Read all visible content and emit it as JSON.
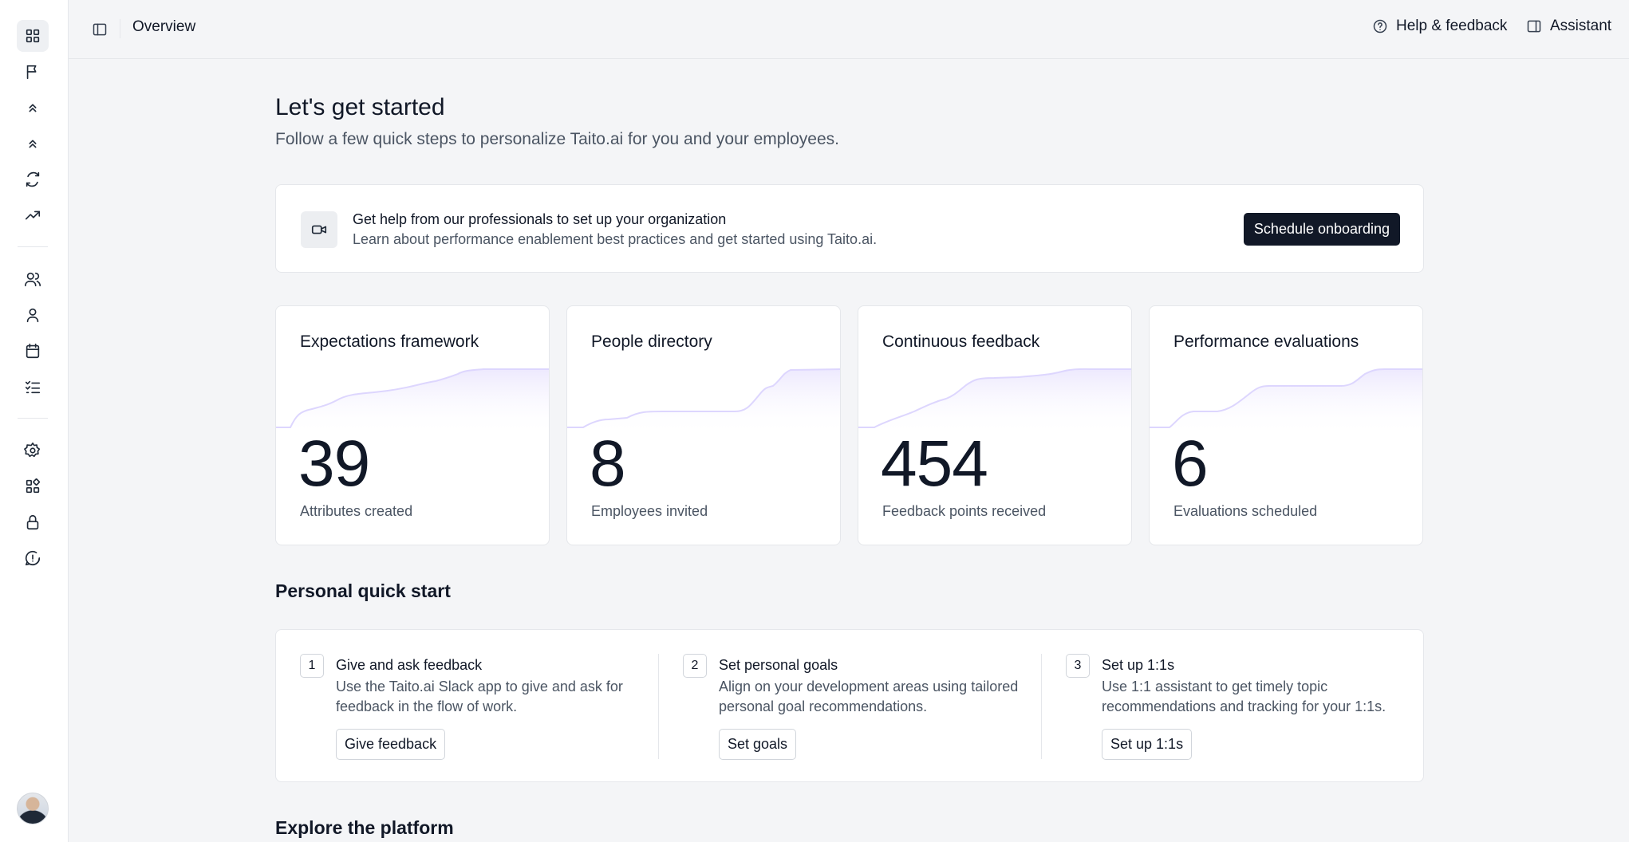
{
  "topbar": {
    "title": "Overview",
    "help_label": "Help & feedback",
    "assistant_label": "Assistant"
  },
  "sidebar": {
    "icons": [
      "grid-icon",
      "flag-icon",
      "chevrons-up-icon",
      "chevrons-up-icon",
      "refresh-icon",
      "trending-up-icon",
      "users-icon",
      "user-icon",
      "calendar-icon",
      "list-checks-icon",
      "gear-icon",
      "apps-icon",
      "lock-icon",
      "alert-message-icon"
    ],
    "active": "grid-icon"
  },
  "intro": {
    "title": "Let's get started",
    "subtitle": "Follow a few quick steps to personalize Taito.ai for you and your employees."
  },
  "onboarding": {
    "title": "Get help from our professionals to set up your organization",
    "description": "Learn about performance enablement best practices and get started using Taito.ai.",
    "button_label": "Schedule onboarding"
  },
  "stats": [
    {
      "title": "Expectations framework",
      "value": "39",
      "label": "Attributes created"
    },
    {
      "title": "People directory",
      "value": "8",
      "label": "Employees invited"
    },
    {
      "title": "Continuous feedback",
      "value": "454",
      "label": "Feedback points received"
    },
    {
      "title": "Performance evaluations",
      "value": "6",
      "label": "Evaluations scheduled"
    }
  ],
  "quick_start": {
    "heading": "Personal quick start",
    "steps": [
      {
        "number": "1",
        "title": "Give and ask feedback",
        "description": "Use the Taito.ai Slack app to give and ask for feedback in the flow of work.",
        "button_label": "Give feedback"
      },
      {
        "number": "2",
        "title": "Set personal goals",
        "description": "Align on your development areas using tailored personal goal recommendations.",
        "button_label": "Set goals"
      },
      {
        "number": "3",
        "title": "Set up 1:1s",
        "description": "Use 1:1 assistant to get timely topic recommendations and tracking for your 1:1s.",
        "button_label": "Set up 1:1s"
      }
    ]
  },
  "explore": {
    "heading": "Explore the platform"
  },
  "colors": {
    "accent_dark": "#111827",
    "sparkline": "#c4b5fd",
    "background": "#f4f5f7"
  }
}
